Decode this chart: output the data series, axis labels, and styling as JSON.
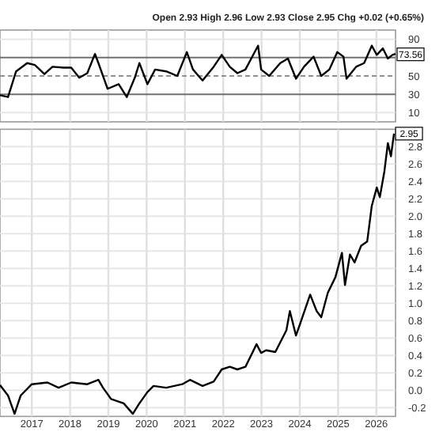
{
  "chart_data": [
    {
      "type": "line",
      "subtitle": "Open 2.93  High 2.96  Low 2.93  Close 2.95  Chg +0.02 (+0.65%)",
      "x": [
        2016.17,
        2016.38,
        2016.59,
        2016.88,
        2017.08,
        2017.33,
        2017.54,
        2017.83,
        2018.03,
        2018.24,
        2018.45,
        2018.65,
        2018.74,
        2018.98,
        2019.27,
        2019.48,
        2019.69,
        2019.81,
        2020.02,
        2020.22,
        2020.51,
        2020.8,
        2021.05,
        2021.21,
        2021.46,
        2021.75,
        2021.96,
        2022.17,
        2022.37,
        2022.58,
        2022.91,
        2022.99,
        2023.2,
        2023.49,
        2023.69,
        2023.9,
        2024.11,
        2024.36,
        2024.56,
        2024.77,
        2024.98,
        2025.14,
        2025.22,
        2025.47,
        2025.68,
        2025.88,
        2026.01,
        2026.17,
        2026.3,
        2026.42,
        2026.5
      ],
      "series": [
        {
          "color": "#000000",
          "values": [
            29,
            27,
            55,
            64,
            62,
            52,
            60,
            59,
            59,
            48,
            53,
            74,
            64,
            36,
            41,
            27,
            48,
            64,
            41,
            57,
            55,
            50,
            76,
            57,
            45,
            60,
            73,
            60,
            53,
            57,
            83,
            57,
            50,
            64,
            69,
            47,
            60,
            71,
            50,
            57,
            76,
            71,
            47,
            60,
            64,
            83,
            73,
            80,
            69,
            73,
            74
          ]
        }
      ],
      "xlim": [
        2016.17,
        2026.5
      ],
      "xticks": [
        2017,
        2018,
        2019,
        2020,
        2021,
        2022,
        2023,
        2024,
        2025,
        2026
      ],
      "ylim": [
        0,
        100
      ],
      "yticks": [
        10,
        30,
        50,
        90
      ],
      "tick_labels": "y",
      "grid": true,
      "ref_lines": [
        {
          "axis": "y",
          "value": 70,
          "color": "#707070"
        },
        {
          "axis": "y",
          "value": 50,
          "color": "#909090",
          "line_style": "dashed"
        },
        {
          "axis": "y",
          "value": 30,
          "color": "#707070"
        }
      ],
      "annotations": [
        {
          "text": "73.56",
          "x": 2026.5,
          "y": 73.56
        }
      ]
    },
    {
      "type": "line",
      "x": [
        2016.17,
        2016.38,
        2016.55,
        2016.71,
        2017.0,
        2017.41,
        2017.7,
        2018.03,
        2018.45,
        2018.74,
        2018.86,
        2019.07,
        2019.4,
        2019.64,
        2019.81,
        2020.02,
        2020.18,
        2020.51,
        2020.93,
        2021.13,
        2021.46,
        2021.75,
        2021.96,
        2022.17,
        2022.37,
        2022.58,
        2022.87,
        2022.99,
        2023.12,
        2023.36,
        2023.65,
        2023.74,
        2023.9,
        2024.02,
        2024.27,
        2024.44,
        2024.56,
        2024.73,
        2024.93,
        2025.1,
        2025.18,
        2025.31,
        2025.43,
        2025.6,
        2025.76,
        2025.88,
        2026.01,
        2026.09,
        2026.21,
        2026.3,
        2026.38,
        2026.46
      ],
      "series": [
        {
          "color": "#000000",
          "values": [
            0.06,
            -0.06,
            -0.27,
            -0.06,
            0.07,
            0.09,
            0.03,
            0.09,
            0.07,
            0.12,
            0.03,
            -0.1,
            -0.15,
            -0.27,
            -0.15,
            -0.02,
            0.05,
            0.03,
            0.07,
            0.12,
            0.05,
            0.1,
            0.24,
            0.27,
            0.24,
            0.27,
            0.53,
            0.43,
            0.46,
            0.44,
            0.69,
            0.91,
            0.63,
            0.78,
            1.1,
            0.91,
            0.84,
            1.12,
            1.3,
            1.58,
            1.21,
            1.56,
            1.47,
            1.66,
            1.71,
            2.12,
            2.33,
            2.22,
            2.52,
            2.84,
            2.69,
            2.95
          ]
        }
      ],
      "xlim": [
        2016.17,
        2026.5
      ],
      "xticks": [
        2017,
        2018,
        2019,
        2020,
        2021,
        2022,
        2023,
        2024,
        2025,
        2026
      ],
      "ylim": [
        -0.3,
        3.0
      ],
      "yticks": [
        -0.2,
        {
          "value": 0,
          "label": "0.0"
        },
        0.2,
        0.4,
        0.6,
        0.8,
        {
          "value": 1,
          "label": "1.0"
        },
        1.2,
        1.4,
        1.6,
        1.8,
        {
          "value": 2,
          "label": "2.0"
        },
        2.2,
        2.4,
        2.6,
        2.8
      ],
      "grid": true,
      "annotations": [
        {
          "text": "2.95",
          "x": 2026.46,
          "y": 2.95
        }
      ]
    }
  ]
}
